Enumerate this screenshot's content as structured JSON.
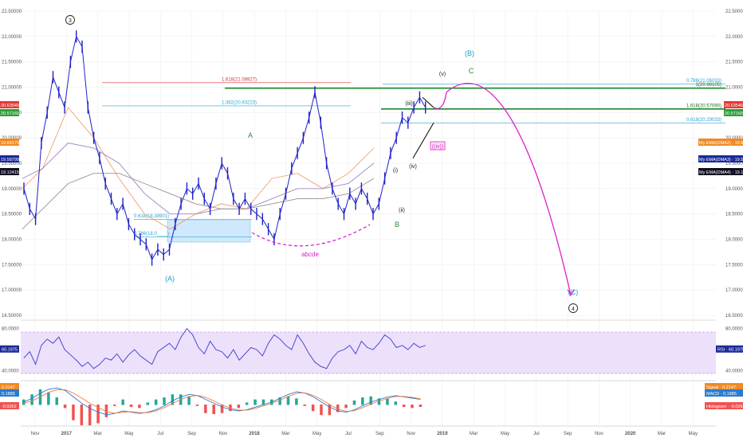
{
  "colors": {
    "price": "#1e22c8",
    "ma_orange": "#f0a070",
    "ma_purple": "#9a86c4",
    "ma_gray": "#9a8f8f",
    "fib_line": "#29a4d4",
    "fib_red": "#e0303a",
    "green_line": "#1a8a2a",
    "magenta": "#e020c8",
    "rsi_line": "#3a3ad0",
    "rsi_band": "#ece0fb",
    "macd_line": "#2a7cd0",
    "signal_line": "#f07a3a",
    "hist_pos": "#26a69a",
    "hist_neg": "#ef5350",
    "wave_blue": "#1fa0c8",
    "wave_green": "#2e8b3a",
    "grid": "#eeeeee"
  },
  "chart_data": {
    "type": "line",
    "price_axis": {
      "labels": [
        "22.50000",
        "22.00000",
        "21.50000",
        "21.00000",
        "20.50000",
        "20.00000",
        "19.50000",
        "19.00000",
        "18.50000",
        "18.00000",
        "17.50000",
        "17.00000",
        "16.50000"
      ],
      "ylim": [
        16.45,
        22.55
      ]
    },
    "time_axis": {
      "labels": [
        "Nov",
        "2017",
        "Mar",
        "May",
        "Jul",
        "Sep",
        "Nov",
        "2018",
        "Mar",
        "May",
        "Jul",
        "Sep",
        "Nov",
        "2019",
        "Mar",
        "May",
        "Jul",
        "Sep",
        "Nov",
        "2020",
        "Mar",
        "May"
      ]
    },
    "price_series": {
      "name": "",
      "points": [
        [
          0,
          19.0
        ],
        [
          1,
          18.6
        ],
        [
          2,
          18.4
        ],
        [
          3,
          19.9
        ],
        [
          4,
          20.5
        ],
        [
          5,
          21.2
        ],
        [
          6,
          20.9
        ],
        [
          7,
          20.6
        ],
        [
          8,
          21.5
        ],
        [
          9,
          22.0
        ],
        [
          10,
          21.8
        ],
        [
          11,
          20.6
        ],
        [
          12,
          20.0
        ],
        [
          13,
          19.6
        ],
        [
          14,
          19.1
        ],
        [
          15,
          18.8
        ],
        [
          16,
          18.5
        ],
        [
          17,
          18.7
        ],
        [
          18,
          18.3
        ],
        [
          19,
          18.1
        ],
        [
          20,
          18.0
        ],
        [
          21,
          17.9
        ],
        [
          22,
          17.6
        ],
        [
          23,
          17.8
        ],
        [
          24,
          17.7
        ],
        [
          25,
          17.8
        ],
        [
          26,
          18.3
        ],
        [
          27,
          18.7
        ],
        [
          28,
          19.0
        ],
        [
          29,
          18.9
        ],
        [
          30,
          19.1
        ],
        [
          31,
          18.8
        ],
        [
          32,
          18.6
        ],
        [
          33,
          19.1
        ],
        [
          34,
          19.5
        ],
        [
          35,
          19.3
        ],
        [
          36,
          18.8
        ],
        [
          37,
          18.6
        ],
        [
          38,
          18.8
        ],
        [
          39,
          18.6
        ],
        [
          40,
          18.5
        ],
        [
          41,
          18.4
        ],
        [
          42,
          18.2
        ],
        [
          43,
          18.0
        ],
        [
          44,
          18.5
        ],
        [
          45,
          18.9
        ],
        [
          46,
          19.4
        ],
        [
          47,
          19.7
        ],
        [
          48,
          20.0
        ],
        [
          49,
          20.4
        ],
        [
          50,
          20.9
        ],
        [
          51,
          20.3
        ],
        [
          52,
          19.5
        ],
        [
          53,
          19.0
        ],
        [
          54,
          18.7
        ],
        [
          55,
          18.5
        ],
        [
          56,
          18.9
        ],
        [
          57,
          18.7
        ],
        [
          58,
          19.0
        ],
        [
          59,
          18.8
        ],
        [
          60,
          18.5
        ],
        [
          61,
          18.7
        ],
        [
          62,
          19.2
        ],
        [
          63,
          19.7
        ],
        [
          64,
          20.0
        ],
        [
          65,
          20.4
        ],
        [
          66,
          20.3
        ],
        [
          67,
          20.6
        ],
        [
          68,
          20.8
        ],
        [
          69,
          20.6
        ]
      ]
    },
    "moving_averages": [
      {
        "name": "",
        "points": [
          [
            0,
            19.0
          ],
          [
            4,
            19.4
          ],
          [
            9,
            20.6
          ],
          [
            14,
            20.0
          ],
          [
            19,
            19.2
          ],
          [
            24,
            18.5
          ],
          [
            29,
            18.2
          ],
          [
            34,
            18.5
          ],
          [
            39,
            18.7
          ],
          [
            44,
            18.6
          ],
          [
            49,
            19.2
          ],
          [
            54,
            19.3
          ],
          [
            59,
            19.0
          ],
          [
            64,
            19.3
          ],
          [
            69,
            19.8
          ]
        ]
      },
      {
        "name": "",
        "points": [
          [
            0,
            19.2
          ],
          [
            4,
            19.4
          ],
          [
            9,
            19.9
          ],
          [
            14,
            19.8
          ],
          [
            19,
            19.5
          ],
          [
            24,
            18.9
          ],
          [
            29,
            18.5
          ],
          [
            34,
            18.5
          ],
          [
            39,
            18.6
          ],
          [
            44,
            18.6
          ],
          [
            49,
            18.8
          ],
          [
            54,
            19.0
          ],
          [
            59,
            19.0
          ],
          [
            64,
            19.1
          ],
          [
            69,
            19.5
          ]
        ]
      },
      {
        "name": "",
        "points": [
          [
            0,
            18.2
          ],
          [
            4,
            18.6
          ],
          [
            9,
            19.1
          ],
          [
            14,
            19.3
          ],
          [
            19,
            19.3
          ],
          [
            24,
            19.1
          ],
          [
            29,
            18.9
          ],
          [
            34,
            18.7
          ],
          [
            39,
            18.6
          ],
          [
            44,
            18.6
          ],
          [
            49,
            18.7
          ],
          [
            54,
            18.8
          ],
          [
            59,
            18.8
          ],
          [
            64,
            18.9
          ],
          [
            69,
            19.2
          ]
        ]
      }
    ],
    "projection": {
      "points": [
        [
          69,
          20.6
        ],
        [
          74,
          21.0
        ],
        [
          78,
          21.1
        ],
        [
          83,
          20.8
        ],
        [
          88,
          20.1
        ],
        [
          93,
          18.7
        ],
        [
          97,
          17.5
        ],
        [
          99,
          16.9
        ]
      ]
    },
    "fib_levels": [
      {
        "label": "1.618(21.08927)",
        "value": 21.08927,
        "color": "red"
      },
      {
        "label": "1.382(20.63223)",
        "value": 20.63223,
        "color": "blue"
      },
      {
        "label": "0.786(21.06033)",
        "value": 21.06033,
        "color": "blue"
      },
      {
        "label": "1(20.98105)",
        "value": 20.98105,
        "color": "green"
      },
      {
        "label": "1.618(20.57090)",
        "value": 20.5709,
        "color": "green"
      },
      {
        "label": "0.618(20.29033)",
        "value": 20.29033,
        "color": "blue"
      },
      {
        "label": "0.618(18.38901)",
        "value": 18.38901,
        "color": "blue"
      },
      {
        "label": "0.786(18.0____)",
        "value": 18.05,
        "color": "blue"
      }
    ],
    "waves": [
      {
        "label": "3",
        "circled": true,
        "color": "black"
      },
      {
        "label": "(A)",
        "circled": false,
        "color": "blue"
      },
      {
        "label": "A",
        "circled": false,
        "color": "green"
      },
      {
        "label": "B",
        "circled": false,
        "color": "green"
      },
      {
        "label": "(i)",
        "circled": false,
        "color": "black"
      },
      {
        "label": "(ii)",
        "circled": false,
        "color": "black"
      },
      {
        "label": "(iii)",
        "circled": false,
        "color": "black"
      },
      {
        "label": "(iv)",
        "circled": false,
        "color": "black"
      },
      {
        "label": "(v)",
        "circled": false,
        "color": "black"
      },
      {
        "label": "((iv))",
        "circled": false,
        "color": "magenta"
      },
      {
        "label": "C",
        "circled": false,
        "color": "green"
      },
      {
        "label": "(B)",
        "circled": false,
        "color": "blue"
      },
      {
        "label": "(C)",
        "circled": false,
        "color": "blue"
      },
      {
        "label": "4",
        "circled": true,
        "color": "black"
      }
    ],
    "annotation": "abcde",
    "price_badges_left": [
      {
        "text": "20.63540",
        "color": "red"
      },
      {
        "text": "20.57160",
        "color": "green"
      },
      {
        "text": "19.89179",
        "color": "orange"
      },
      {
        "text": "19.58799",
        "color": "navy"
      },
      {
        "text": "19.12415",
        "color": "black"
      }
    ],
    "price_badges_right": [
      {
        "text": "20.63540",
        "color": "red"
      },
      {
        "text": "20.57160",
        "color": "green"
      },
      {
        "text": "My EMA(DMA2) · 19.89179",
        "color": "orange"
      },
      {
        "text": "My EMA(DMA3) · 19.58799",
        "color": "navy"
      },
      {
        "text": "My EMA(DMA4) · 19.12415",
        "color": "black"
      }
    ],
    "rsi": {
      "axis_labels": [
        "80.0000",
        "60.1975",
        "40.0000"
      ],
      "badge_left": "60.1975",
      "badge_right": "RSI · 60.1975",
      "values": [
        52,
        58,
        46,
        64,
        70,
        66,
        72,
        60,
        55,
        50,
        44,
        48,
        42,
        46,
        52,
        50,
        56,
        48,
        55,
        60,
        54,
        50,
        46,
        58,
        62,
        66,
        60,
        72,
        80,
        74,
        62,
        56,
        68,
        60,
        58,
        52,
        60,
        50,
        56,
        62,
        60,
        54,
        66,
        74,
        70,
        64,
        60,
        74,
        66,
        56,
        48,
        44,
        42,
        52,
        58,
        60,
        64,
        56,
        68,
        62,
        60,
        66,
        74,
        70,
        62,
        64,
        60,
        66,
        62,
        64
      ]
    },
    "macd": {
      "badges_left": [
        "0.2147",
        "0.1885",
        "-0.0262"
      ],
      "badges_right": [
        "Signal · 0.2147",
        "MACD · 0.1885",
        "Histogram · -0.0262"
      ],
      "macd": [
        0.1,
        0.25,
        0.45,
        0.6,
        0.65,
        0.55,
        0.3,
        0.05,
        -0.15,
        -0.3,
        -0.4,
        -0.35,
        -0.25,
        -0.3,
        -0.35,
        -0.3,
        -0.2,
        -0.05,
        0.15,
        0.3,
        0.4,
        0.35,
        0.2,
        0.05,
        -0.1,
        -0.2,
        -0.25,
        -0.2,
        -0.1,
        0.0,
        0.1,
        0.25,
        0.4,
        0.5,
        0.45,
        0.3,
        0.1,
        -0.1,
        -0.25,
        -0.3,
        -0.2,
        -0.05,
        0.1,
        0.2,
        0.3,
        0.35,
        0.3,
        0.25,
        0.2
      ],
      "signal": [
        0.05,
        0.15,
        0.3,
        0.48,
        0.58,
        0.58,
        0.45,
        0.25,
        0.05,
        -0.12,
        -0.28,
        -0.34,
        -0.3,
        -0.28,
        -0.32,
        -0.32,
        -0.25,
        -0.12,
        0.05,
        0.2,
        0.32,
        0.36,
        0.28,
        0.14,
        -0.02,
        -0.14,
        -0.22,
        -0.22,
        -0.15,
        -0.05,
        0.05,
        0.18,
        0.32,
        0.44,
        0.46,
        0.36,
        0.2,
        0.0,
        -0.18,
        -0.27,
        -0.24,
        -0.12,
        0.02,
        0.14,
        0.24,
        0.32,
        0.32,
        0.28,
        0.22
      ]
    }
  }
}
